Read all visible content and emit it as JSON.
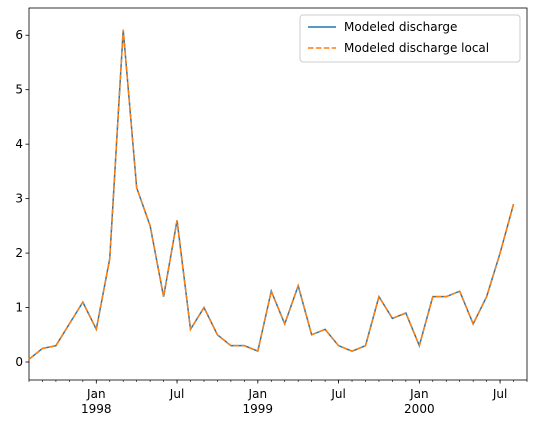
{
  "chart_data": {
    "type": "line",
    "x": [
      "1997-08",
      "1997-09",
      "1997-10",
      "1997-11",
      "1997-12",
      "1998-01",
      "1998-02",
      "1998-03",
      "1998-04",
      "1998-05",
      "1998-06",
      "1998-07",
      "1998-08",
      "1998-09",
      "1998-10",
      "1998-11",
      "1998-12",
      "1999-01",
      "1999-02",
      "1999-03",
      "1999-04",
      "1999-05",
      "1999-06",
      "1999-07",
      "1999-08",
      "1999-09",
      "1999-10",
      "1999-11",
      "1999-12",
      "2000-01",
      "2000-02",
      "2000-03",
      "2000-04",
      "2000-05",
      "2000-06",
      "2000-07",
      "2000-08"
    ],
    "series": [
      {
        "name": "Modeled discharge",
        "color": "#1f77b4",
        "linestyle": "solid",
        "values": [
          0.05,
          0.25,
          0.3,
          0.7,
          1.1,
          0.6,
          1.9,
          6.1,
          3.2,
          2.5,
          1.2,
          2.6,
          0.6,
          1.0,
          0.5,
          0.3,
          0.3,
          0.2,
          1.3,
          0.7,
          1.4,
          0.5,
          0.6,
          0.3,
          0.2,
          0.3,
          1.2,
          0.8,
          0.9,
          0.3,
          1.2,
          1.2,
          1.3,
          0.7,
          1.2,
          2.0,
          2.9
        ]
      },
      {
        "name": "Modeled discharge local",
        "color": "#ff7f0e",
        "linestyle": "dashed",
        "values": [
          0.05,
          0.25,
          0.3,
          0.7,
          1.1,
          0.6,
          1.9,
          6.1,
          3.2,
          2.5,
          1.2,
          2.6,
          0.6,
          1.0,
          0.5,
          0.3,
          0.3,
          0.2,
          1.3,
          0.7,
          1.4,
          0.5,
          0.6,
          0.3,
          0.2,
          0.3,
          1.2,
          0.8,
          0.9,
          0.3,
          1.2,
          1.2,
          1.3,
          0.7,
          1.2,
          2.0,
          2.9
        ]
      }
    ],
    "xlim": [
      "1997-08",
      "2000-09"
    ],
    "xticks": [
      {
        "value": "1998-01",
        "label": "Jan\n1998"
      },
      {
        "value": "1998-07",
        "label": "Jul"
      },
      {
        "value": "1999-01",
        "label": "Jan\n1999"
      },
      {
        "value": "1999-07",
        "label": "Jul"
      },
      {
        "value": "2000-01",
        "label": "Jan\n2000"
      },
      {
        "value": "2000-07",
        "label": "Jul"
      }
    ],
    "ylim": [
      -0.33,
      6.5
    ],
    "yticks": [
      0,
      1,
      2,
      3,
      4,
      5,
      6
    ],
    "legend": "upper right"
  }
}
